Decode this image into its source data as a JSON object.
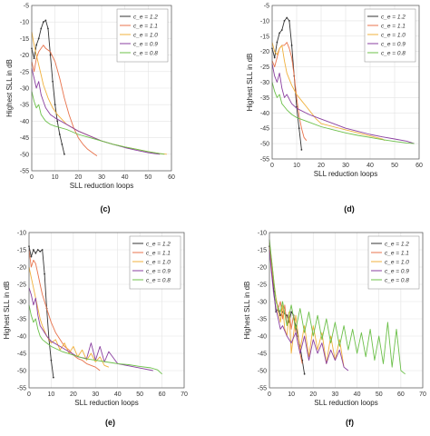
{
  "chart_data": [
    {
      "type": "line",
      "panel_label": "(c)",
      "xlabel": "SLL reduction loops",
      "ylabel": "Highest SLL in dB",
      "xlim": [
        0,
        60
      ],
      "ylim": [
        -55,
        -5
      ],
      "xticks": [
        0,
        10,
        20,
        30,
        40,
        50,
        60
      ],
      "yticks": [
        -5,
        -10,
        -15,
        -20,
        -25,
        -30,
        -35,
        -40,
        -45,
        -50,
        -55
      ],
      "grid": true,
      "legend_position": "top-right",
      "series": [
        {
          "name": "c_e = 1.2",
          "color": "#333333",
          "x": [
            0,
            1,
            2,
            3,
            4,
            5,
            6,
            7,
            8,
            9,
            10,
            11,
            12,
            13,
            14
          ],
          "y": [
            -18,
            -21,
            -17,
            -15,
            -12,
            -10,
            -9.5,
            -12,
            -20,
            -28,
            -35,
            -40,
            -44,
            -47,
            -50
          ]
        },
        {
          "name": "c_e = 1.1",
          "color": "#e8734c",
          "x": [
            0,
            1,
            2,
            3,
            4,
            5,
            6,
            8,
            10,
            12,
            14,
            16,
            18,
            20,
            22,
            24,
            26,
            28
          ],
          "y": [
            -22,
            -25,
            -21,
            -19,
            -18,
            -17,
            -18,
            -19,
            -22,
            -27,
            -33,
            -38,
            -42,
            -45,
            -47,
            -48.5,
            -49.5,
            -50.5
          ]
        },
        {
          "name": "c_e = 1.0",
          "color": "#f0b03c",
          "x": [
            0,
            1,
            2,
            3,
            4,
            5,
            7,
            9,
            11,
            13,
            15,
            20,
            25,
            30,
            35,
            40,
            45,
            50,
            55,
            58
          ],
          "y": [
            -13,
            -17,
            -20,
            -23,
            -26,
            -29,
            -33,
            -36,
            -38,
            -39.5,
            -41,
            -43,
            -44.5,
            -46,
            -47,
            -47.8,
            -48.5,
            -49.2,
            -49.8,
            -50
          ]
        },
        {
          "name": "c_e = 0.9",
          "color": "#8a3fa0",
          "x": [
            0,
            1,
            2,
            3,
            4,
            5,
            6,
            8,
            10,
            15,
            20,
            25,
            30,
            35,
            40,
            45,
            50,
            55
          ],
          "y": [
            -24,
            -27,
            -30,
            -28,
            -32,
            -34,
            -36,
            -38,
            -39,
            -41,
            -43,
            -44.5,
            -46,
            -47,
            -48,
            -48.8,
            -49.5,
            -50
          ]
        },
        {
          "name": "c_e = 0.8",
          "color": "#6cc04a",
          "x": [
            0,
            1,
            2,
            3,
            4,
            5,
            6,
            8,
            10,
            15,
            20,
            25,
            30,
            35,
            40,
            45,
            50,
            55,
            57
          ],
          "y": [
            -31,
            -34,
            -36,
            -35,
            -38,
            -39,
            -40,
            -41,
            -41.5,
            -42.5,
            -44,
            -45,
            -46,
            -47,
            -47.8,
            -48.5,
            -49.2,
            -49.8,
            -50
          ]
        }
      ]
    },
    {
      "type": "line",
      "panel_label": "(d)",
      "xlabel": "SLL reduction loops",
      "ylabel": "Highest SLL in dB",
      "xlim": [
        0,
        60
      ],
      "ylim": [
        -55,
        -5
      ],
      "xticks": [
        0,
        10,
        20,
        30,
        40,
        50,
        60
      ],
      "yticks": [
        -5,
        -10,
        -15,
        -20,
        -25,
        -30,
        -35,
        -40,
        -45,
        -50,
        -55
      ],
      "grid": true,
      "legend_position": "top-right",
      "series": [
        {
          "name": "c_e = 1.2",
          "color": "#333333",
          "x": [
            0,
            1,
            2,
            3,
            4,
            5,
            6,
            7,
            8,
            9,
            10,
            11,
            12
          ],
          "y": [
            -19,
            -22,
            -17,
            -14,
            -13,
            -10,
            -9,
            -10,
            -18,
            -28,
            -38,
            -45,
            -52
          ]
        },
        {
          "name": "c_e = 1.1",
          "color": "#e8734c",
          "x": [
            0,
            1,
            2,
            3,
            4,
            5,
            6,
            7,
            8,
            9,
            10,
            11,
            12,
            13,
            14
          ],
          "y": [
            -23,
            -25,
            -22,
            -19,
            -18,
            -18,
            -17,
            -19,
            -22,
            -28,
            -35,
            -41,
            -45,
            -48,
            -49
          ]
        },
        {
          "name": "c_e = 1.0",
          "color": "#f0b03c",
          "x": [
            0,
            1,
            2,
            3,
            4,
            5,
            6,
            8,
            10,
            12,
            14,
            16,
            18,
            20,
            25,
            30,
            35,
            40,
            45,
            46
          ],
          "y": [
            -17,
            -20,
            -21,
            -19,
            -18,
            -23,
            -27,
            -31,
            -34,
            -36,
            -38,
            -40,
            -42,
            -43.5,
            -44.5,
            -45.5,
            -46.5,
            -47.5,
            -48.5,
            -49
          ]
        },
        {
          "name": "c_e = 0.9",
          "color": "#8a3fa0",
          "x": [
            0,
            1,
            2,
            3,
            4,
            5,
            6,
            8,
            10,
            15,
            20,
            25,
            30,
            35,
            40,
            45,
            50,
            55,
            58
          ],
          "y": [
            -24,
            -28,
            -30,
            -27,
            -32,
            -35,
            -34,
            -37,
            -38.5,
            -40.5,
            -42,
            -43.5,
            -45,
            -46,
            -47,
            -47.8,
            -48.5,
            -49.2,
            -50
          ]
        },
        {
          "name": "c_e = 0.8",
          "color": "#6cc04a",
          "x": [
            0,
            1,
            2,
            3,
            4,
            5,
            6,
            8,
            10,
            15,
            20,
            25,
            30,
            35,
            40,
            45,
            50,
            55,
            58
          ],
          "y": [
            -30,
            -33,
            -35,
            -34,
            -37,
            -38,
            -39,
            -40.5,
            -41.5,
            -43,
            -44.5,
            -45.5,
            -46.5,
            -47.3,
            -48,
            -48.7,
            -49.3,
            -49.8,
            -50
          ]
        }
      ]
    },
    {
      "type": "line",
      "panel_label": "(e)",
      "xlabel": "SLL reduction loops",
      "ylabel": "Highest SLL in dB",
      "xlim": [
        0,
        70
      ],
      "ylim": [
        -55,
        -10
      ],
      "xticks": [
        0,
        10,
        20,
        30,
        40,
        50,
        60,
        70
      ],
      "yticks": [
        -10,
        -15,
        -20,
        -25,
        -30,
        -35,
        -40,
        -45,
        -50,
        -55
      ],
      "grid": true,
      "legend_position": "top-right",
      "series": [
        {
          "name": "c_e = 1.2",
          "color": "#333333",
          "x": [
            0,
            1,
            2,
            3,
            4,
            5,
            6,
            7,
            8,
            9,
            10,
            11
          ],
          "y": [
            -14,
            -17,
            -15,
            -16,
            -15,
            -15.5,
            -15,
            -22,
            -32,
            -41,
            -47,
            -52
          ]
        },
        {
          "name": "c_e = 1.1",
          "color": "#e8734c",
          "x": [
            0,
            1,
            2,
            3,
            4,
            5,
            6,
            8,
            10,
            12,
            14,
            16,
            18,
            20,
            22,
            24,
            26,
            28,
            30,
            32
          ],
          "y": [
            -15,
            -20,
            -18,
            -19,
            -22,
            -25,
            -28,
            -32,
            -36,
            -39,
            -41,
            -43,
            -44,
            -45.5,
            -46.5,
            -47,
            -48,
            -48.5,
            -49,
            -50
          ]
        },
        {
          "name": "c_e = 1.0",
          "color": "#f0b03c",
          "x": [
            0,
            1,
            2,
            3,
            4,
            5,
            6,
            8,
            10,
            12,
            14,
            16,
            18,
            20,
            22,
            24,
            26,
            28,
            30,
            32,
            34,
            36
          ],
          "y": [
            -20,
            -23,
            -26,
            -29,
            -32,
            -35,
            -37,
            -40,
            -42,
            -41,
            -44,
            -42,
            -45,
            -43,
            -46,
            -44,
            -47,
            -45,
            -47.5,
            -46,
            -48.5,
            -49
          ]
        },
        {
          "name": "c_e = 0.9",
          "color": "#8a3fa0",
          "x": [
            0,
            1,
            2,
            3,
            4,
            5,
            6,
            8,
            10,
            14,
            18,
            22,
            26,
            28,
            30,
            32,
            34,
            36,
            40,
            44,
            48,
            52,
            56
          ],
          "y": [
            -26,
            -28,
            -31,
            -29,
            -34,
            -37,
            -38,
            -40,
            -41.5,
            -43,
            -44.5,
            -46,
            -46.5,
            -42,
            -47,
            -43,
            -47.5,
            -44.5,
            -48,
            -48.5,
            -49,
            -49.5,
            -50
          ]
        },
        {
          "name": "c_e = 0.8",
          "color": "#6cc04a",
          "x": [
            0,
            1,
            2,
            3,
            4,
            5,
            6,
            8,
            10,
            15,
            20,
            25,
            30,
            35,
            40,
            45,
            50,
            55,
            58,
            60
          ],
          "y": [
            -31,
            -34,
            -36,
            -35,
            -38,
            -40,
            -41,
            -42,
            -43,
            -44.5,
            -45.5,
            -46.5,
            -47,
            -47.5,
            -48,
            -48.3,
            -48.8,
            -49.2,
            -49.8,
            -51
          ]
        }
      ]
    },
    {
      "type": "line",
      "panel_label": "(f)",
      "xlabel": "SLL reduction loops",
      "ylabel": "Highest SLL in dB",
      "xlim": [
        0,
        70
      ],
      "ylim": [
        -55,
        -10
      ],
      "xticks": [
        0,
        10,
        20,
        30,
        40,
        50,
        60,
        70
      ],
      "yticks": [
        -10,
        -15,
        -20,
        -25,
        -30,
        -35,
        -40,
        -45,
        -50,
        -55
      ],
      "grid": true,
      "legend_position": "top-right",
      "series": [
        {
          "name": "c_e = 1.2",
          "color": "#333333",
          "x": [
            0,
            1,
            2,
            3,
            4,
            5,
            6,
            7,
            8,
            9,
            10,
            11,
            12,
            13,
            14,
            15,
            16
          ],
          "y": [
            -14,
            -20,
            -27,
            -33,
            -32,
            -34,
            -33,
            -33.5,
            -34,
            -36,
            -33,
            -34,
            -37,
            -40,
            -43,
            -47,
            -51
          ]
        },
        {
          "name": "c_e = 1.1",
          "color": "#e8734c",
          "x": [
            0,
            1,
            2,
            3,
            4,
            5,
            6,
            7,
            8,
            9,
            10,
            11,
            12,
            13,
            14,
            15
          ],
          "y": [
            -14,
            -20,
            -25,
            -29,
            -32,
            -30,
            -35,
            -31,
            -37,
            -33,
            -38,
            -34,
            -39,
            -42,
            -45,
            -48
          ]
        },
        {
          "name": "c_e = 1.0",
          "color": "#f0b03c",
          "x": [
            0,
            1,
            2,
            3,
            4,
            5,
            6,
            7,
            8,
            9,
            10,
            12,
            14,
            16,
            18,
            20,
            22,
            24,
            26,
            28,
            30,
            32,
            34
          ],
          "y": [
            -13,
            -18,
            -24,
            -29,
            -33,
            -36,
            -31,
            -38,
            -40,
            -33,
            -45,
            -34,
            -44,
            -37,
            -46,
            -37,
            -44,
            -39,
            -48,
            -40,
            -47,
            -41,
            -49
          ]
        },
        {
          "name": "c_e = 0.9",
          "color": "#8a3fa0",
          "x": [
            0,
            1,
            2,
            3,
            4,
            5,
            6,
            8,
            10,
            12,
            14,
            16,
            18,
            20,
            22,
            24,
            26,
            28,
            30,
            32,
            34,
            36
          ],
          "y": [
            -15,
            -22,
            -28,
            -32,
            -35,
            -38,
            -37,
            -40,
            -42,
            -39,
            -45,
            -40,
            -47,
            -41,
            -45,
            -42,
            -48,
            -44,
            -47,
            -44,
            -49,
            -50
          ]
        },
        {
          "name": "c_e = 0.8",
          "color": "#6cc04a",
          "x": [
            0,
            1,
            2,
            3,
            4,
            5,
            6,
            8,
            10,
            12,
            14,
            16,
            18,
            20,
            22,
            24,
            26,
            28,
            30,
            32,
            34,
            36,
            38,
            40,
            42,
            44,
            46,
            48,
            50,
            52,
            54,
            56,
            58,
            60,
            62
          ],
          "y": [
            -12,
            -18,
            -24,
            -30,
            -32,
            -33,
            -30,
            -37,
            -31,
            -38,
            -32,
            -39,
            -33,
            -40,
            -34,
            -41,
            -35,
            -42,
            -36,
            -43,
            -37,
            -44,
            -38,
            -45,
            -39,
            -46,
            -38,
            -47,
            -40,
            -48,
            -36,
            -49,
            -38,
            -50,
            -51
          ]
        }
      ]
    }
  ]
}
